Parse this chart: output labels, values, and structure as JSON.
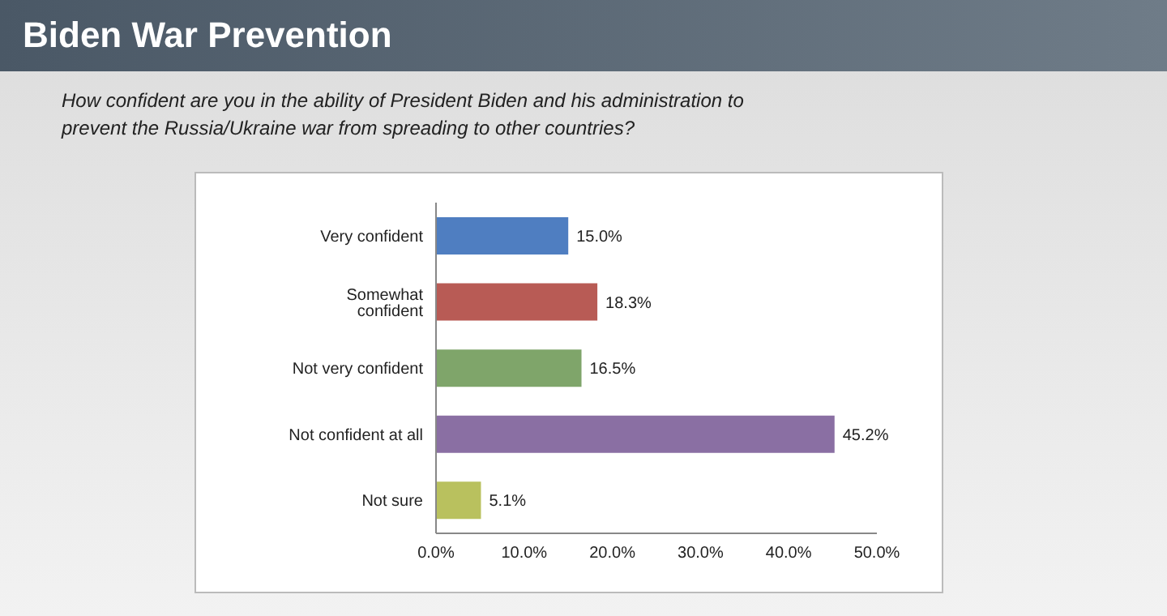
{
  "chart_data": {
    "type": "bar",
    "orientation": "horizontal",
    "title": "Biden War Prevention",
    "subtitle": "How confident are you in the ability of President Biden and his administration to prevent the Russia/Ukraine war from spreading to other countries?",
    "categories": [
      "Very confident",
      "Somewhat confident",
      "Not very confident",
      "Not confident at all",
      "Not sure"
    ],
    "values": [
      15.0,
      18.3,
      16.5,
      45.2,
      5.1
    ],
    "colors": [
      "#4f7ec1",
      "#b85b55",
      "#7fa56a",
      "#8a6fa3",
      "#b9c15e"
    ],
    "value_labels": [
      "15.0%",
      "18.3%",
      "16.5%",
      "45.2%",
      "5.1%"
    ],
    "xlim": [
      0,
      50
    ],
    "xticks": [
      {
        "value": 0,
        "label": "0.0%"
      },
      {
        "value": 10,
        "label": "10.0%"
      },
      {
        "value": 20,
        "label": "20.0%"
      },
      {
        "value": 30,
        "label": "30.0%"
      },
      {
        "value": 40,
        "label": "40.0%"
      },
      {
        "value": 50,
        "label": "50.0%"
      }
    ],
    "grid": false,
    "legend": false
  }
}
